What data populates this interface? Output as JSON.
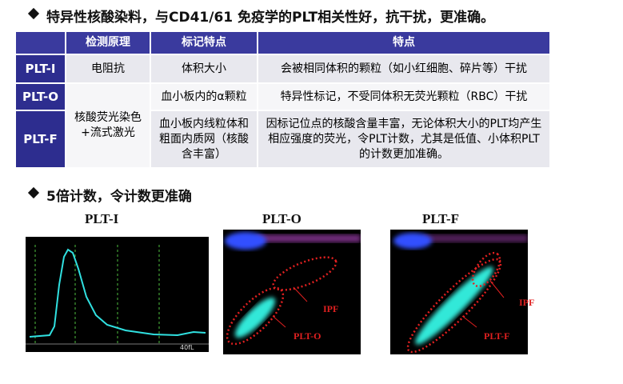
{
  "headings": [
    "特异性核酸染料，与CD41/61 免疫学的PLT相关性好，抗干扰，更准确。",
    "5倍计数，令计数更准确"
  ],
  "table": {
    "header": [
      "检测原理",
      "标记特点",
      "特点"
    ],
    "rows": [
      {
        "name": "PLT-I",
        "principle": "电阻抗",
        "marker": "体积大小",
        "feature": "会被相同体积的颗粒（如小红细胞、碎片等）干扰"
      },
      {
        "name": "PLT-O",
        "principle": "核酸荧光染色+流式激光",
        "marker": "血小板内的α颗粒",
        "feature": "特异性标记，不受同体积无荧光颗粒（RBC）干扰"
      },
      {
        "name": "PLT-F",
        "marker": "血小板内线粒体和粗面内质网（核酸含丰富）",
        "feature": "因标记位点的核酸含量丰富，无论体积大小的PLT均产生相应强度的荧光，令PLT计数，尤其是低值、小体积PLT的计数更加准确。"
      }
    ]
  },
  "figures": [
    {
      "title": "PLT-I",
      "labels": [
        "40fL"
      ]
    },
    {
      "title": "PLT-O",
      "labels": [
        "IPF",
        "PLT-O"
      ]
    },
    {
      "title": "PLT-F",
      "labels": [
        "IPF",
        "PLT-F"
      ]
    }
  ]
}
